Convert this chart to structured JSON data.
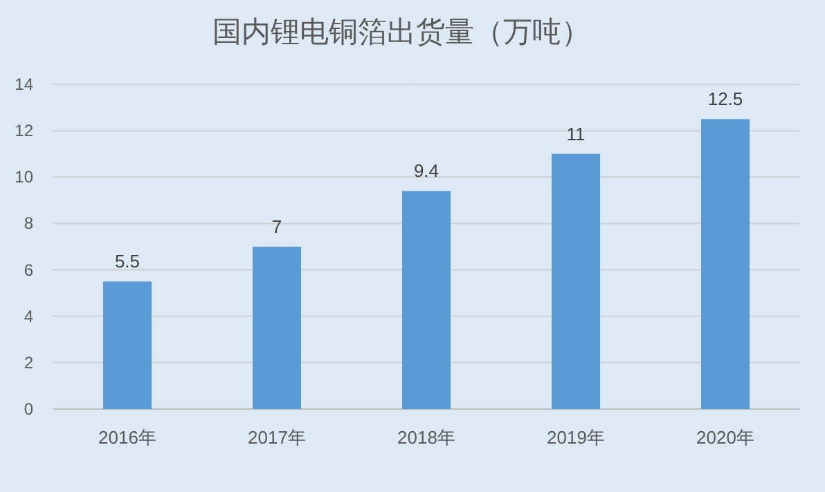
{
  "chart_data": {
    "type": "bar",
    "title": "国内锂电铜箔出货量（万吨）",
    "categories": [
      "2016年",
      "2017年",
      "2018年",
      "2019年",
      "2020年"
    ],
    "values": [
      5.5,
      7,
      9.4,
      11,
      12.5
    ],
    "color": "#5b9bd5",
    "ylim": [
      0,
      14
    ],
    "yticks": [
      0,
      2,
      4,
      6,
      8,
      10,
      12,
      14
    ],
    "grid": "y",
    "data_labels": true
  }
}
